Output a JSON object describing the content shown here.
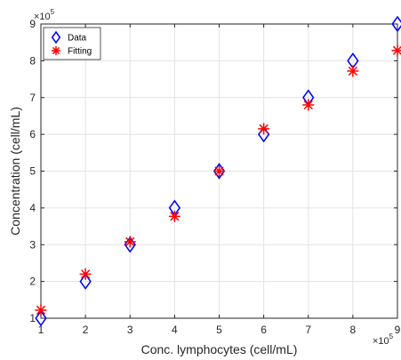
{
  "chart_data": {
    "type": "scatter",
    "xlabel": "Conc. lymphocytes (cell/mL)",
    "ylabel": "Concentration (cell/mL)",
    "x_exponent": "×10",
    "x_exponent_power": "5",
    "y_exponent": "×10",
    "y_exponent_power": "5",
    "xlim": [
      1,
      9
    ],
    "ylim": [
      1,
      9
    ],
    "xticks": [
      1,
      2,
      3,
      4,
      5,
      6,
      7,
      8,
      9
    ],
    "yticks": [
      1,
      2,
      3,
      4,
      5,
      6,
      7,
      8,
      9
    ],
    "grid": true,
    "legend_position": "top-left",
    "series": [
      {
        "name": "Data",
        "marker": "diamond",
        "color": "#0000ff",
        "x": [
          1,
          2,
          3,
          4,
          5,
          6,
          7,
          8,
          9
        ],
        "y": [
          1.0,
          2.0,
          3.0,
          4.0,
          5.0,
          6.0,
          7.0,
          8.0,
          9.0
        ]
      },
      {
        "name": "Fitting",
        "marker": "asterisk",
        "color": "#ff0000",
        "x": [
          1,
          2,
          3,
          4,
          5,
          6,
          7,
          8,
          9
        ],
        "y": [
          1.22,
          2.2,
          3.08,
          3.77,
          5.0,
          6.15,
          6.8,
          7.72,
          8.28
        ]
      }
    ]
  }
}
